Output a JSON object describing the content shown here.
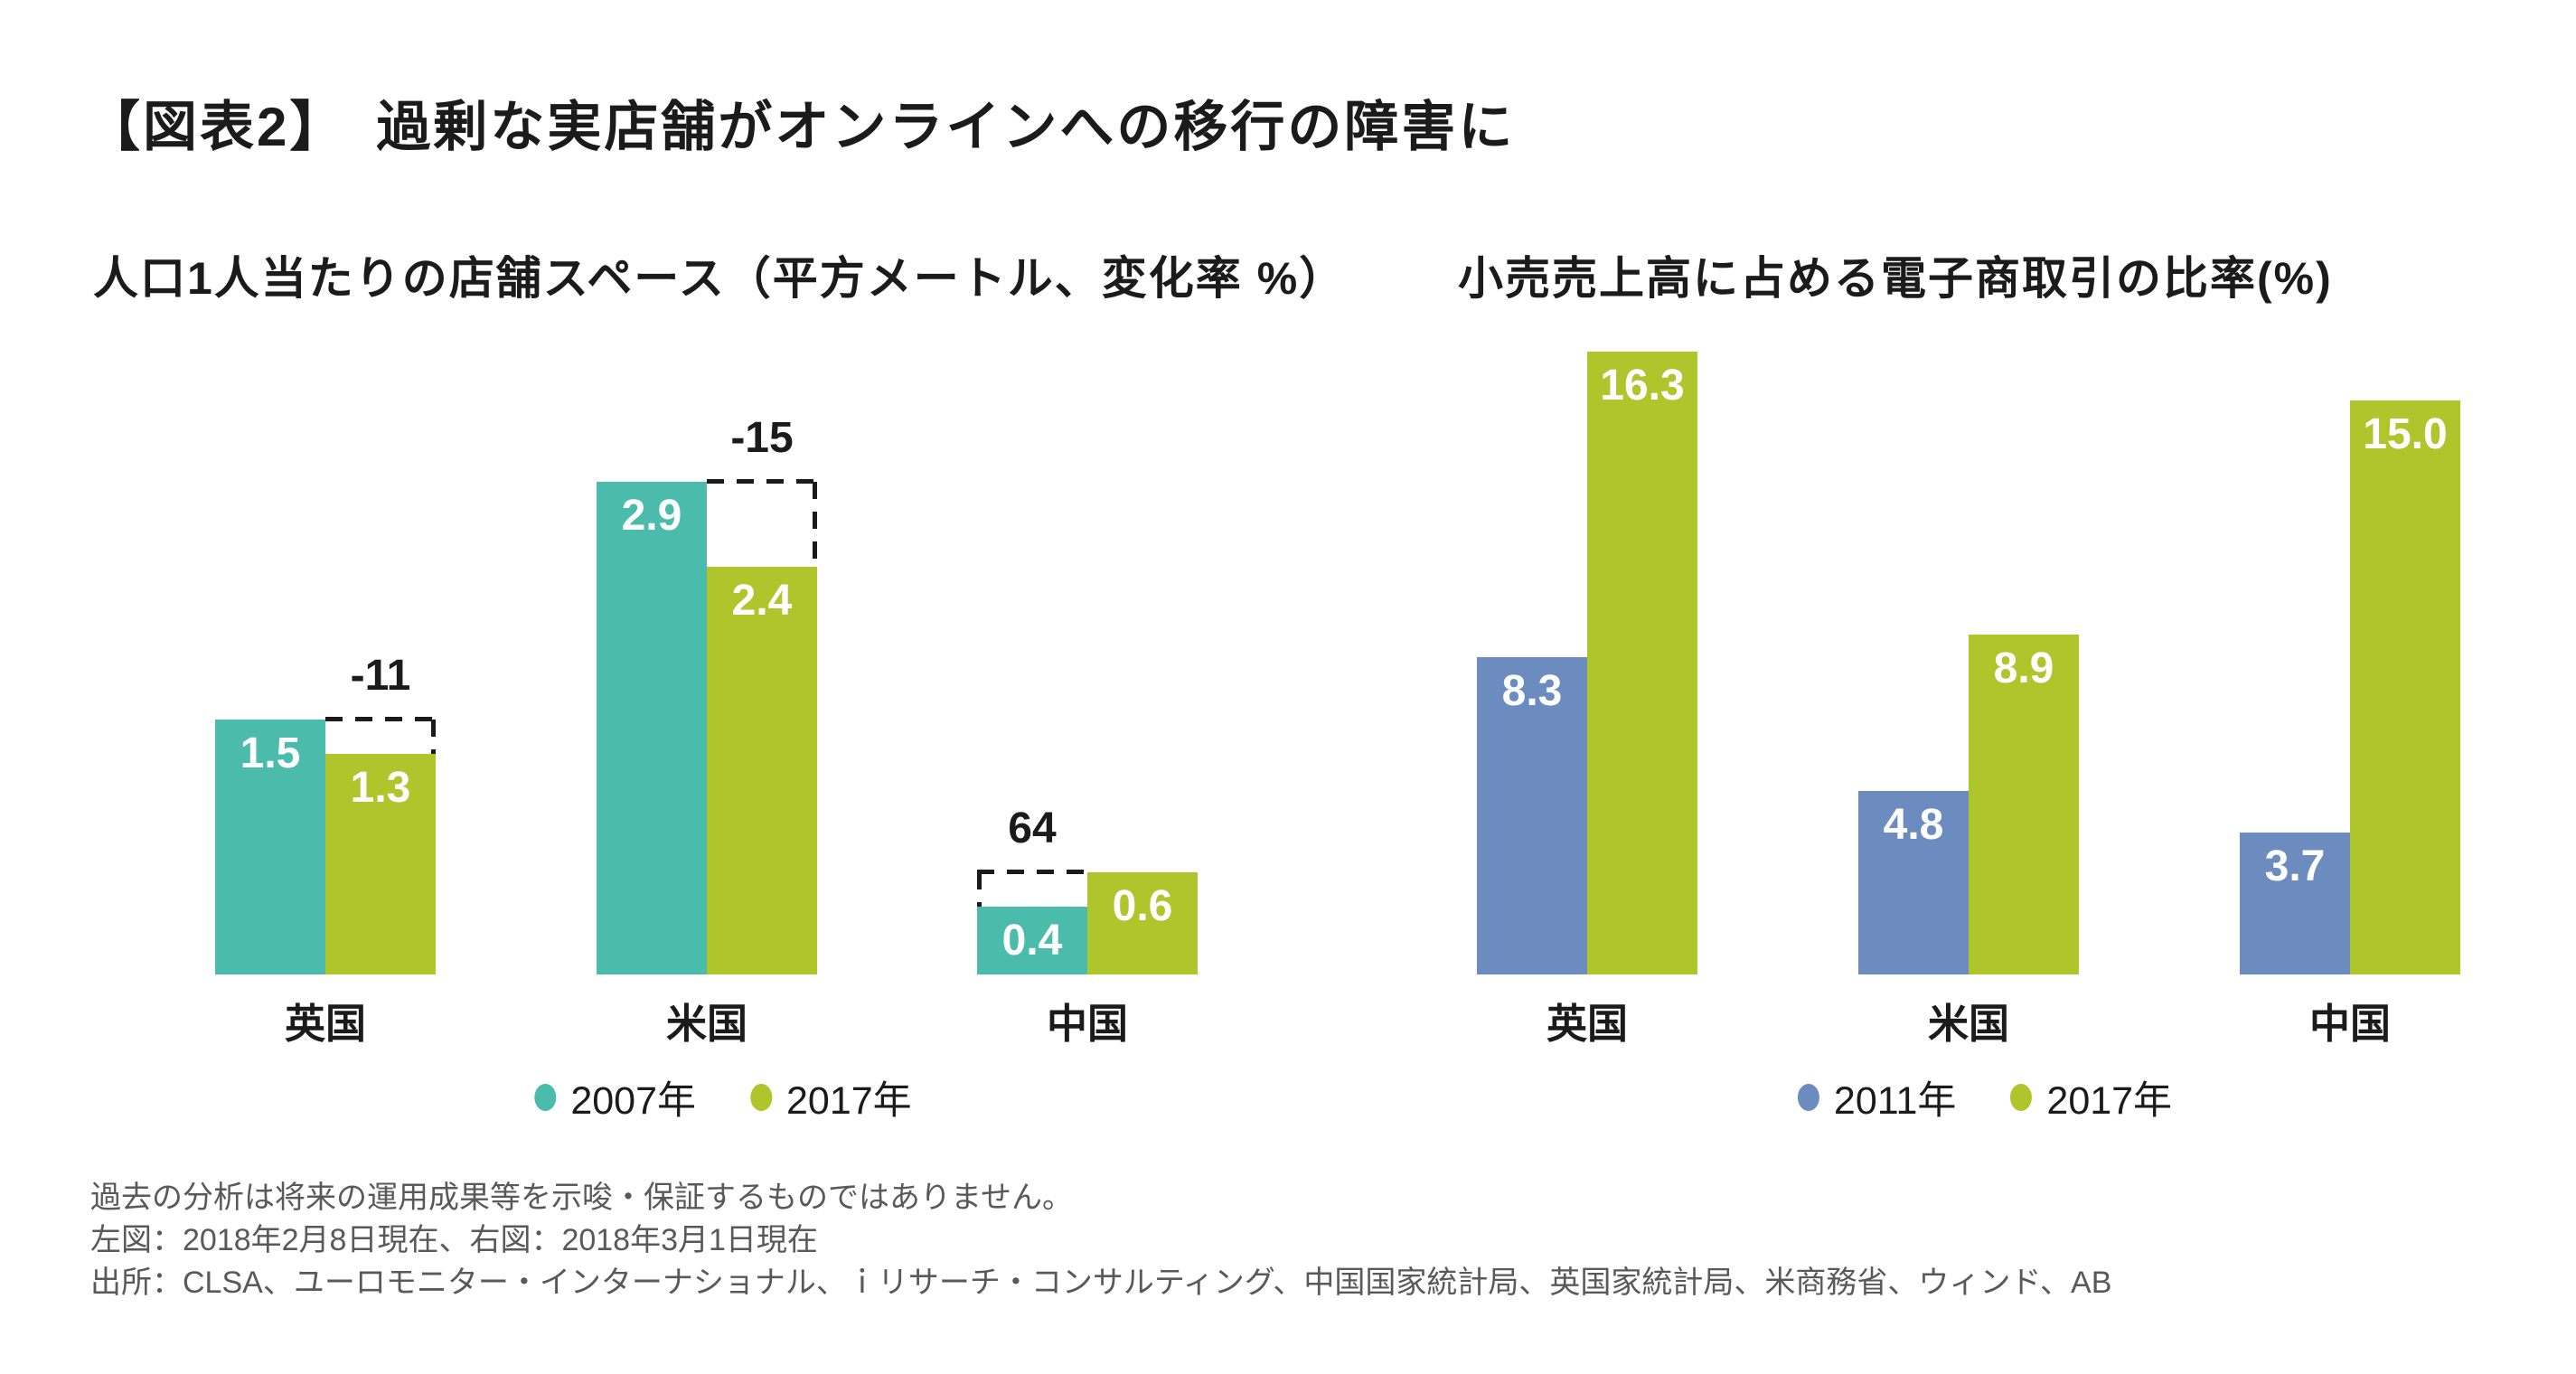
{
  "page": {
    "title": "【図表2】　過剰な実店舗がオンラインへの移行の障害に"
  },
  "chart_data": [
    {
      "type": "bar",
      "title": "人口1人当たりの店舗スペース（平方メートル、変化率 %）",
      "categories": [
        "英国",
        "米国",
        "中国"
      ],
      "series": [
        {
          "name": "2007年",
          "color": "#4BBCAB",
          "values": [
            1.5,
            2.9,
            0.4
          ]
        },
        {
          "name": "2017年",
          "color": "#AEC52B",
          "values": [
            1.3,
            2.4,
            0.6
          ]
        }
      ],
      "change_labels": [
        "-11",
        "-15",
        "64"
      ],
      "xlabel": "",
      "ylabel": "",
      "ylim": [
        0,
        3.1
      ],
      "grid": false,
      "axes_hidden": true,
      "legend_position": "bottom",
      "value_label_decimals": 1
    },
    {
      "type": "bar",
      "title": "小売売上高に占める電子商取引の比率(%)",
      "categories": [
        "英国",
        "米国",
        "中国"
      ],
      "series": [
        {
          "name": "2011年",
          "color": "#6C8CBF",
          "values": [
            8.3,
            4.8,
            3.7
          ]
        },
        {
          "name": "2017年",
          "color": "#AEC52B",
          "values": [
            16.3,
            8.9,
            15.0
          ]
        }
      ],
      "xlabel": "",
      "ylabel": "",
      "ylim": [
        0,
        16.6
      ],
      "grid": false,
      "axes_hidden": true,
      "legend_position": "bottom",
      "value_label_decimals": 1
    }
  ],
  "footer": {
    "line1": "過去の分析は将来の運用成果等を示唆・保証するものではありません。",
    "line2": "左図：2018年2月8日現在、右図：2018年3月1日現在",
    "line3": "出所：CLSA、ユーロモニター・インターナショナル、ｉリサーチ・コンサルティング、中国国家統計局、英国家統計局、米商務省、ウィンド、AB"
  },
  "colors": {
    "series_2007": "#4BBCAB",
    "series_2011": "#6C8CBF",
    "series_2017": "#AEC52B",
    "text": "#1B1B1B",
    "footer_text": "#595959",
    "background": "#FFFFFF"
  }
}
